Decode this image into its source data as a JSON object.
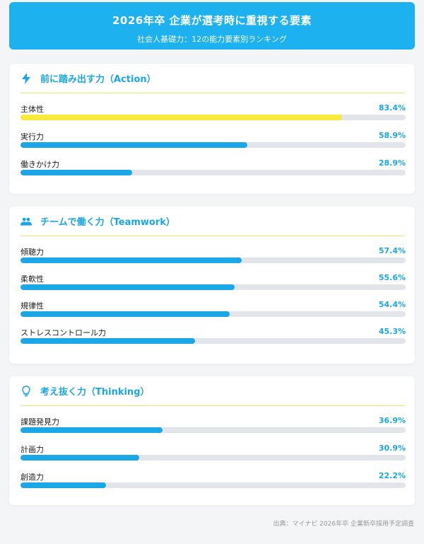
{
  "header": {
    "title": "2026年卒 企業が選考時に重視する要素",
    "subtitle": "社会人基礎力：12の能力要素別ランキング"
  },
  "colors": {
    "accent": "#1ba6e8",
    "highlight": "#f8ea3b",
    "track": "#e2e6ea",
    "header_bg": "#1eb1ef"
  },
  "chart_data": {
    "type": "bar",
    "orientation": "horizontal",
    "unit": "%",
    "xlim": [
      0,
      100
    ],
    "groups": [
      {
        "name": "前に踏み出す力（Action）",
        "icon": "lightning-icon",
        "items": [
          {
            "label": "主体性",
            "value": 83.4,
            "display": "83.4%",
            "highlight": true
          },
          {
            "label": "実行力",
            "value": 58.9,
            "display": "58.9%"
          },
          {
            "label": "働きかけ力",
            "value": 28.9,
            "display": "28.9%"
          }
        ]
      },
      {
        "name": "チームで働く力（Teamwork）",
        "icon": "people-icon",
        "items": [
          {
            "label": "傾聴力",
            "value": 57.4,
            "display": "57.4%"
          },
          {
            "label": "柔軟性",
            "value": 55.6,
            "display": "55.6%"
          },
          {
            "label": "規律性",
            "value": 54.4,
            "display": "54.4%"
          },
          {
            "label": "ストレスコントロール力",
            "value": 45.3,
            "display": "45.3%"
          }
        ]
      },
      {
        "name": "考え抜く力（Thinking）",
        "icon": "lightbulb-icon",
        "items": [
          {
            "label": "課題発見力",
            "value": 36.9,
            "display": "36.9%"
          },
          {
            "label": "計画力",
            "value": 30.9,
            "display": "30.9%"
          },
          {
            "label": "創造力",
            "value": 22.2,
            "display": "22.2%"
          }
        ]
      }
    ]
  },
  "footer": {
    "source": "出典：マイナビ 2026年卒 企業新卒採用予定調査"
  }
}
